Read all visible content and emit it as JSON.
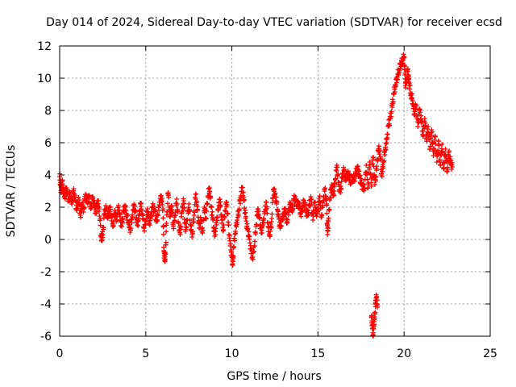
{
  "chart_data": {
    "type": "scatter",
    "title": "Day 014 of 2024, Sidereal Day-to-day VTEC variation (SDTVAR) for receiver ecsd",
    "xlabel": "GPS time / hours",
    "ylabel": "SDTVAR / TECUs",
    "xlim": [
      0,
      25
    ],
    "ylim": [
      -6,
      12
    ],
    "xticks": [
      0,
      5,
      10,
      15,
      20,
      25
    ],
    "yticks": [
      -6,
      -4,
      -2,
      0,
      2,
      4,
      6,
      8,
      10,
      12
    ],
    "grid": true,
    "marker": "+",
    "series": [
      {
        "name": "SDTVAR",
        "color": "#ff0000",
        "points": [
          [
            0.0,
            3.9
          ],
          [
            0.05,
            3.4
          ],
          [
            0.1,
            2.9
          ],
          [
            0.15,
            3.6
          ],
          [
            0.2,
            3.1
          ],
          [
            0.3,
            2.7
          ],
          [
            0.4,
            3.2
          ],
          [
            0.5,
            2.5
          ],
          [
            0.6,
            2.9
          ],
          [
            0.7,
            2.2
          ],
          [
            0.8,
            3.0
          ],
          [
            0.9,
            2.4
          ],
          [
            1.0,
            1.8
          ],
          [
            1.1,
            2.6
          ],
          [
            1.2,
            1.5
          ],
          [
            1.3,
            2.2
          ],
          [
            1.4,
            1.9
          ],
          [
            1.5,
            2.8
          ],
          [
            1.6,
            2.3
          ],
          [
            1.7,
            2.6
          ],
          [
            1.8,
            1.9
          ],
          [
            1.9,
            2.5
          ],
          [
            2.0,
            2.2
          ],
          [
            2.1,
            1.7
          ],
          [
            2.2,
            2.4
          ],
          [
            2.3,
            1.9
          ],
          [
            2.4,
            0.2
          ],
          [
            2.45,
            0.1
          ],
          [
            2.5,
            0.3
          ],
          [
            2.6,
            1.6
          ],
          [
            2.7,
            1.9
          ],
          [
            2.8,
            1.3
          ],
          [
            2.9,
            2.0
          ],
          [
            3.0,
            1.5
          ],
          [
            3.1,
            0.9
          ],
          [
            3.2,
            1.8
          ],
          [
            3.3,
            1.2
          ],
          [
            3.4,
            2.0
          ],
          [
            3.5,
            1.4
          ],
          [
            3.6,
            0.8
          ],
          [
            3.7,
            1.7
          ],
          [
            3.8,
            2.0
          ],
          [
            3.9,
            1.5
          ],
          [
            4.0,
            1.1
          ],
          [
            4.1,
            0.6
          ],
          [
            4.2,
            1.4
          ],
          [
            4.3,
            2.1
          ],
          [
            4.4,
            1.7
          ],
          [
            4.5,
            0.9
          ],
          [
            4.6,
            1.3
          ],
          [
            4.7,
            2.2
          ],
          [
            4.8,
            1.6
          ],
          [
            4.9,
            0.7
          ],
          [
            5.0,
            1.2
          ],
          [
            5.1,
            1.9
          ],
          [
            5.2,
            1.0
          ],
          [
            5.3,
            1.4
          ],
          [
            5.4,
            2.0
          ],
          [
            5.5,
            1.8
          ],
          [
            5.6,
            1.1
          ],
          [
            5.7,
            1.5
          ],
          [
            5.8,
            2.3
          ],
          [
            5.9,
            2.7
          ],
          [
            6.0,
            1.9
          ],
          [
            6.05,
            -0.7
          ],
          [
            6.1,
            -1.3
          ],
          [
            6.15,
            -0.9
          ],
          [
            6.2,
            1.0
          ],
          [
            6.3,
            2.9
          ],
          [
            6.4,
            1.4
          ],
          [
            6.5,
            2.1
          ],
          [
            6.6,
            0.8
          ],
          [
            6.7,
            1.5
          ],
          [
            6.8,
            2.5
          ],
          [
            6.9,
            1.0
          ],
          [
            7.0,
            0.3
          ],
          [
            7.1,
            1.7
          ],
          [
            7.2,
            2.4
          ],
          [
            7.3,
            0.5
          ],
          [
            7.4,
            1.2
          ],
          [
            7.5,
            2.2
          ],
          [
            7.6,
            0.9
          ],
          [
            7.7,
            0.3
          ],
          [
            7.8,
            1.5
          ],
          [
            7.9,
            2.8
          ],
          [
            8.0,
            1.8
          ],
          [
            8.1,
            0.7
          ],
          [
            8.2,
            1.2
          ],
          [
            8.3,
            0.4
          ],
          [
            8.4,
            2.0
          ],
          [
            8.5,
            1.3
          ],
          [
            8.6,
            2.7
          ],
          [
            8.7,
            3.2
          ],
          [
            8.8,
            2.0
          ],
          [
            8.9,
            1.2
          ],
          [
            9.0,
            0.2
          ],
          [
            9.1,
            0.9
          ],
          [
            9.2,
            1.8
          ],
          [
            9.3,
            2.5
          ],
          [
            9.4,
            1.4
          ],
          [
            9.5,
            0.6
          ],
          [
            9.6,
            1.8
          ],
          [
            9.7,
            2.3
          ],
          [
            9.8,
            0.9
          ],
          [
            9.9,
            -0.4
          ],
          [
            10.0,
            -1.1
          ],
          [
            10.05,
            -1.6
          ],
          [
            10.1,
            -0.5
          ],
          [
            10.2,
            0.5
          ],
          [
            10.3,
            1.2
          ],
          [
            10.4,
            1.8
          ],
          [
            10.5,
            2.6
          ],
          [
            10.6,
            3.2
          ],
          [
            10.7,
            2.4
          ],
          [
            10.8,
            1.3
          ],
          [
            10.9,
            0.6
          ],
          [
            11.0,
            0.2
          ],
          [
            11.1,
            -0.6
          ],
          [
            11.2,
            -1.1
          ],
          [
            11.3,
            -0.4
          ],
          [
            11.4,
            0.8
          ],
          [
            11.5,
            1.9
          ],
          [
            11.6,
            1.3
          ],
          [
            11.7,
            0.4
          ],
          [
            11.8,
            0.9
          ],
          [
            11.9,
            1.6
          ],
          [
            12.0,
            2.3
          ],
          [
            12.1,
            0.8
          ],
          [
            12.2,
            0.3
          ],
          [
            12.3,
            1.1
          ],
          [
            12.4,
            3.1
          ],
          [
            12.5,
            2.8
          ],
          [
            12.6,
            2.2
          ],
          [
            12.7,
            1.4
          ],
          [
            12.8,
            0.7
          ],
          [
            12.9,
            1.2
          ],
          [
            13.0,
            1.6
          ],
          [
            13.1,
            1.9
          ],
          [
            13.2,
            1.1
          ],
          [
            13.3,
            1.9
          ],
          [
            13.4,
            2.2
          ],
          [
            13.5,
            1.7
          ],
          [
            13.6,
            2.5
          ],
          [
            13.7,
            2.4
          ],
          [
            13.8,
            2.1
          ],
          [
            13.9,
            2.2
          ],
          [
            14.0,
            1.6
          ],
          [
            14.1,
            2.0
          ],
          [
            14.2,
            2.4
          ],
          [
            14.3,
            1.8
          ],
          [
            14.4,
            1.5
          ],
          [
            14.5,
            2.1
          ],
          [
            14.6,
            2.5
          ],
          [
            14.7,
            1.2
          ],
          [
            14.8,
            2.3
          ],
          [
            14.9,
            1.6
          ],
          [
            15.0,
            1.9
          ],
          [
            15.1,
            2.7
          ],
          [
            15.2,
            1.4
          ],
          [
            15.3,
            2.4
          ],
          [
            15.4,
            3.1
          ],
          [
            15.5,
            2.2
          ],
          [
            15.55,
            0.3
          ],
          [
            15.6,
            1.1
          ],
          [
            15.7,
            2.6
          ],
          [
            15.8,
            3.4
          ],
          [
            15.9,
            2.8
          ],
          [
            16.0,
            3.7
          ],
          [
            16.1,
            4.6
          ],
          [
            16.2,
            3.4
          ],
          [
            16.3,
            2.9
          ],
          [
            16.4,
            3.8
          ],
          [
            16.5,
            4.3
          ],
          [
            16.6,
            3.7
          ],
          [
            16.7,
            4.1
          ],
          [
            16.8,
            4.0
          ],
          [
            16.9,
            3.6
          ],
          [
            17.0,
            3.9
          ],
          [
            17.1,
            3.7
          ],
          [
            17.2,
            4.1
          ],
          [
            17.3,
            4.4
          ],
          [
            17.4,
            3.9
          ],
          [
            17.5,
            3.5
          ],
          [
            17.6,
            3.3
          ],
          [
            17.7,
            3.2
          ],
          [
            17.8,
            4.6
          ],
          [
            17.9,
            3.2
          ],
          [
            18.0,
            4.8
          ],
          [
            18.1,
            3.3
          ],
          [
            18.2,
            5.1
          ],
          [
            18.3,
            3.4
          ],
          [
            18.4,
            4.3
          ],
          [
            18.5,
            5.6
          ],
          [
            18.6,
            5.5
          ],
          [
            18.7,
            4.0
          ],
          [
            18.8,
            4.8
          ],
          [
            18.9,
            5.6
          ],
          [
            19.0,
            6.2
          ],
          [
            19.1,
            7.1
          ],
          [
            19.2,
            7.5
          ],
          [
            19.3,
            8.2
          ],
          [
            19.4,
            9.0
          ],
          [
            19.5,
            9.6
          ],
          [
            19.6,
            10.1
          ],
          [
            19.7,
            10.5
          ],
          [
            19.8,
            10.9
          ],
          [
            19.9,
            11.1
          ],
          [
            20.0,
            11.3
          ],
          [
            20.05,
            10.2
          ],
          [
            20.1,
            9.4
          ],
          [
            20.2,
            10.5
          ],
          [
            20.25,
            10.0
          ],
          [
            20.3,
            9.7
          ],
          [
            20.4,
            9.0
          ],
          [
            20.5,
            8.6
          ],
          [
            20.6,
            7.8
          ],
          [
            20.7,
            8.3
          ],
          [
            20.8,
            7.0
          ],
          [
            20.9,
            8.0
          ],
          [
            21.0,
            7.3
          ],
          [
            21.1,
            6.4
          ],
          [
            21.2,
            7.5
          ],
          [
            21.3,
            6.2
          ],
          [
            21.4,
            7.0
          ],
          [
            21.5,
            5.6
          ],
          [
            21.6,
            6.8
          ],
          [
            21.7,
            5.2
          ],
          [
            21.8,
            6.4
          ],
          [
            21.9,
            4.8
          ],
          [
            22.0,
            6.1
          ],
          [
            22.1,
            4.6
          ],
          [
            22.2,
            5.9
          ],
          [
            22.3,
            4.4
          ],
          [
            22.4,
            5.6
          ],
          [
            22.5,
            4.2
          ],
          [
            22.6,
            5.4
          ],
          [
            22.7,
            4.7
          ],
          [
            22.8,
            4.5
          ],
          [
            18.1,
            -4.8
          ],
          [
            18.15,
            -5.3
          ],
          [
            18.2,
            -5.9
          ],
          [
            18.25,
            -5.1
          ],
          [
            18.3,
            -4.6
          ],
          [
            18.35,
            -3.8
          ],
          [
            18.4,
            -3.6
          ],
          [
            18.45,
            -4.2
          ]
        ]
      }
    ]
  }
}
